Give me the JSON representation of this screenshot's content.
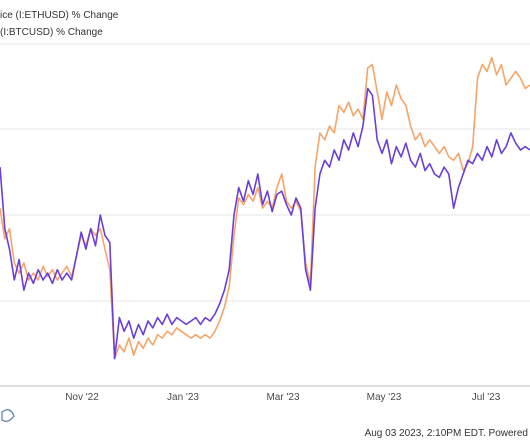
{
  "chart_data": {
    "type": "line",
    "title": "",
    "xlabel": "",
    "ylabel": "",
    "legend_placement": "top-left",
    "grid": "horizontal",
    "x_ticks": [
      "Nov '22",
      "Jan '23",
      "Mar '23",
      "May '23",
      "Jul '23"
    ],
    "y_range": [
      0,
      100
    ],
    "series": [
      {
        "name": "ice (I:ETHUSD) % Change",
        "color": "#f5a46a",
        "points": [
          [
            0,
            52
          ],
          [
            1,
            43
          ],
          [
            2,
            46
          ],
          [
            3,
            36
          ],
          [
            4,
            33
          ],
          [
            5,
            36
          ],
          [
            6,
            31
          ],
          [
            7,
            33
          ],
          [
            8,
            31
          ],
          [
            9,
            35
          ],
          [
            10,
            32
          ],
          [
            11,
            34
          ],
          [
            12,
            31
          ],
          [
            13,
            33
          ],
          [
            14,
            35
          ],
          [
            15,
            32
          ],
          [
            16,
            38
          ],
          [
            17,
            44
          ],
          [
            18,
            41
          ],
          [
            19,
            46
          ],
          [
            20,
            44
          ],
          [
            21,
            46
          ],
          [
            22,
            40
          ],
          [
            23,
            34
          ],
          [
            24,
            8
          ],
          [
            25,
            12
          ],
          [
            26,
            10
          ],
          [
            27,
            14
          ],
          [
            28,
            9
          ],
          [
            29,
            13
          ],
          [
            30,
            11
          ],
          [
            31,
            14
          ],
          [
            32,
            12
          ],
          [
            33,
            15
          ],
          [
            34,
            14
          ],
          [
            35,
            16
          ],
          [
            36,
            15
          ],
          [
            37,
            17
          ],
          [
            38,
            16
          ],
          [
            39,
            15
          ],
          [
            40,
            14
          ],
          [
            41,
            15
          ],
          [
            42,
            14
          ],
          [
            43,
            15
          ],
          [
            44,
            14
          ],
          [
            45,
            16
          ],
          [
            46,
            19
          ],
          [
            47,
            23
          ],
          [
            48,
            29
          ],
          [
            49,
            44
          ],
          [
            50,
            55
          ],
          [
            51,
            53
          ],
          [
            52,
            56
          ],
          [
            53,
            54
          ],
          [
            54,
            58
          ],
          [
            55,
            52
          ],
          [
            56,
            54
          ],
          [
            57,
            52
          ],
          [
            58,
            58
          ],
          [
            59,
            62
          ],
          [
            60,
            54
          ],
          [
            61,
            52
          ],
          [
            62,
            54
          ],
          [
            63,
            51
          ],
          [
            64,
            36
          ],
          [
            65,
            30
          ],
          [
            66,
            64
          ],
          [
            67,
            74
          ],
          [
            68,
            72
          ],
          [
            69,
            76
          ],
          [
            70,
            74
          ],
          [
            71,
            82
          ],
          [
            72,
            80
          ],
          [
            73,
            83
          ],
          [
            74,
            79
          ],
          [
            75,
            81
          ],
          [
            76,
            78
          ],
          [
            77,
            93
          ],
          [
            78,
            94
          ],
          [
            79,
            86
          ],
          [
            80,
            78
          ],
          [
            81,
            86
          ],
          [
            82,
            82
          ],
          [
            83,
            88
          ],
          [
            84,
            84
          ],
          [
            85,
            82
          ],
          [
            86,
            76
          ],
          [
            87,
            72
          ],
          [
            88,
            74
          ],
          [
            89,
            70
          ],
          [
            90,
            72
          ],
          [
            91,
            70
          ],
          [
            92,
            68
          ],
          [
            93,
            70
          ],
          [
            94,
            67
          ],
          [
            95,
            66
          ],
          [
            96,
            68
          ],
          [
            97,
            63
          ],
          [
            98,
            65
          ],
          [
            99,
            70
          ],
          [
            100,
            90
          ],
          [
            101,
            94
          ],
          [
            102,
            92
          ],
          [
            103,
            96
          ],
          [
            104,
            91
          ],
          [
            105,
            94
          ],
          [
            106,
            88
          ],
          [
            107,
            90
          ],
          [
            108,
            92
          ],
          [
            109,
            90
          ],
          [
            110,
            87
          ],
          [
            111,
            88
          ]
        ]
      },
      {
        "name": "(I:BTCUSD) % Change",
        "color": "#6a3fd8",
        "points": [
          [
            0,
            64
          ],
          [
            1,
            46
          ],
          [
            2,
            40
          ],
          [
            3,
            31
          ],
          [
            4,
            37
          ],
          [
            5,
            28
          ],
          [
            6,
            33
          ],
          [
            7,
            30
          ],
          [
            8,
            34
          ],
          [
            9,
            31
          ],
          [
            10,
            33
          ],
          [
            11,
            30
          ],
          [
            12,
            34
          ],
          [
            13,
            31
          ],
          [
            14,
            33
          ],
          [
            15,
            31
          ],
          [
            16,
            38
          ],
          [
            17,
            45
          ],
          [
            18,
            40
          ],
          [
            19,
            46
          ],
          [
            20,
            41
          ],
          [
            21,
            50
          ],
          [
            22,
            44
          ],
          [
            23,
            42
          ],
          [
            24,
            8
          ],
          [
            25,
            20
          ],
          [
            26,
            16
          ],
          [
            27,
            19
          ],
          [
            28,
            14
          ],
          [
            29,
            18
          ],
          [
            30,
            15
          ],
          [
            31,
            19
          ],
          [
            32,
            17
          ],
          [
            33,
            20
          ],
          [
            34,
            18
          ],
          [
            35,
            21
          ],
          [
            36,
            18
          ],
          [
            37,
            20
          ],
          [
            38,
            19
          ],
          [
            39,
            18
          ],
          [
            40,
            19
          ],
          [
            41,
            20
          ],
          [
            42,
            18
          ],
          [
            43,
            20
          ],
          [
            44,
            19
          ],
          [
            45,
            21
          ],
          [
            46,
            24
          ],
          [
            47,
            28
          ],
          [
            48,
            34
          ],
          [
            49,
            50
          ],
          [
            50,
            58
          ],
          [
            51,
            54
          ],
          [
            52,
            60
          ],
          [
            53,
            56
          ],
          [
            54,
            62
          ],
          [
            55,
            53
          ],
          [
            56,
            57
          ],
          [
            57,
            51
          ],
          [
            58,
            56
          ],
          [
            59,
            57
          ],
          [
            60,
            53
          ],
          [
            61,
            50
          ],
          [
            62,
            55
          ],
          [
            63,
            52
          ],
          [
            64,
            34
          ],
          [
            65,
            28
          ],
          [
            66,
            52
          ],
          [
            67,
            62
          ],
          [
            68,
            66
          ],
          [
            69,
            64
          ],
          [
            70,
            69
          ],
          [
            71,
            66
          ],
          [
            72,
            72
          ],
          [
            73,
            69
          ],
          [
            74,
            74
          ],
          [
            75,
            70
          ],
          [
            76,
            76
          ],
          [
            77,
            87
          ],
          [
            78,
            85
          ],
          [
            79,
            72
          ],
          [
            80,
            68
          ],
          [
            81,
            72
          ],
          [
            82,
            65
          ],
          [
            83,
            70
          ],
          [
            84,
            67
          ],
          [
            85,
            71
          ],
          [
            86,
            66
          ],
          [
            87,
            64
          ],
          [
            88,
            68
          ],
          [
            89,
            63
          ],
          [
            90,
            65
          ],
          [
            91,
            62
          ],
          [
            92,
            61
          ],
          [
            93,
            64
          ],
          [
            94,
            62
          ],
          [
            95,
            52
          ],
          [
            96,
            58
          ],
          [
            97,
            62
          ],
          [
            98,
            66
          ],
          [
            99,
            65
          ],
          [
            100,
            68
          ],
          [
            101,
            66
          ],
          [
            102,
            70
          ],
          [
            103,
            67
          ],
          [
            104,
            72
          ],
          [
            105,
            68
          ],
          [
            106,
            70
          ],
          [
            107,
            74
          ],
          [
            108,
            71
          ],
          [
            109,
            69
          ],
          [
            110,
            70
          ],
          [
            111,
            69
          ]
        ]
      }
    ]
  },
  "footer": {
    "timestamp": "Aug 03 2023, 2:10PM EDT.  Powered"
  }
}
